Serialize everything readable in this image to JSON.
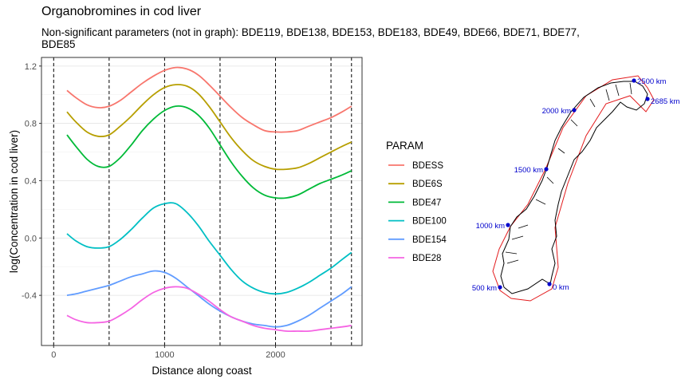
{
  "chart_data": {
    "type": "line",
    "title": "Organobromines in cod liver",
    "subtitle": "Non-significant parameters (not in graph): BDE119, BDE138, BDE153, BDE183, BDE49, BDE66, BDE71, BDE77, BDE85",
    "xlabel": "Distance along coast",
    "ylabel": "log(Concentration in cod liver)",
    "xlim": [
      -110,
      2780
    ],
    "ylim": [
      -0.75,
      1.26
    ],
    "x_ticks": [
      0,
      1000,
      2000
    ],
    "y_ticks": [
      -0.4,
      0.0,
      0.4,
      0.8,
      1.2
    ],
    "y_tick_labels": [
      "-0.4",
      "0.0",
      "0.4",
      "0.8",
      "1.2"
    ],
    "x_tick_labels": [
      "0",
      "1000",
      "2000"
    ],
    "vlines": [
      0,
      500,
      1000,
      1500,
      2000,
      2500,
      2685
    ],
    "legend_title": "PARAM",
    "legend_position": "right",
    "series": [
      {
        "name": "BDESS",
        "color": "#F8766D",
        "x": [
          120,
          200,
          300,
          400,
          500,
          600,
          700,
          800,
          900,
          1000,
          1100,
          1200,
          1300,
          1400,
          1500,
          1600,
          1700,
          1800,
          1900,
          2000,
          2100,
          2200,
          2300,
          2400,
          2500,
          2600,
          2685
        ],
        "y": [
          1.03,
          0.98,
          0.93,
          0.91,
          0.92,
          0.96,
          1.02,
          1.08,
          1.13,
          1.17,
          1.19,
          1.18,
          1.14,
          1.07,
          0.99,
          0.91,
          0.84,
          0.79,
          0.75,
          0.74,
          0.74,
          0.75,
          0.78,
          0.81,
          0.84,
          0.88,
          0.92
        ]
      },
      {
        "name": "BDE6S",
        "color": "#B79F00",
        "x": [
          120,
          200,
          300,
          400,
          500,
          600,
          700,
          800,
          900,
          1000,
          1100,
          1200,
          1300,
          1400,
          1500,
          1600,
          1700,
          1800,
          1900,
          2000,
          2100,
          2200,
          2300,
          2400,
          2500,
          2600,
          2685
        ],
        "y": [
          0.88,
          0.81,
          0.74,
          0.71,
          0.72,
          0.78,
          0.85,
          0.93,
          1.0,
          1.05,
          1.07,
          1.06,
          1.01,
          0.92,
          0.81,
          0.7,
          0.61,
          0.54,
          0.5,
          0.48,
          0.48,
          0.49,
          0.52,
          0.56,
          0.6,
          0.64,
          0.67
        ]
      },
      {
        "name": "BDE47",
        "color": "#00BA38",
        "x": [
          120,
          200,
          300,
          400,
          500,
          600,
          700,
          800,
          900,
          1000,
          1100,
          1200,
          1300,
          1400,
          1500,
          1600,
          1700,
          1800,
          1900,
          2000,
          2100,
          2200,
          2300,
          2400,
          2500,
          2600,
          2685
        ],
        "y": [
          0.72,
          0.64,
          0.55,
          0.5,
          0.5,
          0.56,
          0.65,
          0.75,
          0.83,
          0.89,
          0.92,
          0.91,
          0.86,
          0.77,
          0.65,
          0.53,
          0.43,
          0.35,
          0.3,
          0.28,
          0.28,
          0.3,
          0.34,
          0.38,
          0.41,
          0.44,
          0.47
        ]
      },
      {
        "name": "BDE100",
        "color": "#00BFC4",
        "x": [
          120,
          200,
          300,
          400,
          500,
          600,
          700,
          800,
          900,
          1000,
          1100,
          1200,
          1300,
          1400,
          1500,
          1600,
          1700,
          1800,
          1900,
          2000,
          2100,
          2200,
          2300,
          2400,
          2500,
          2600,
          2685
        ],
        "y": [
          0.03,
          -0.02,
          -0.06,
          -0.07,
          -0.06,
          -0.01,
          0.06,
          0.14,
          0.21,
          0.24,
          0.24,
          0.18,
          0.09,
          -0.02,
          -0.12,
          -0.22,
          -0.3,
          -0.35,
          -0.38,
          -0.39,
          -0.38,
          -0.35,
          -0.31,
          -0.26,
          -0.21,
          -0.15,
          -0.1
        ]
      },
      {
        "name": "BDE154",
        "color": "#619CFF",
        "x": [
          120,
          200,
          300,
          400,
          500,
          600,
          700,
          800,
          900,
          1000,
          1100,
          1200,
          1300,
          1400,
          1500,
          1600,
          1700,
          1800,
          1900,
          2000,
          2100,
          2200,
          2300,
          2400,
          2500,
          2600,
          2685
        ],
        "y": [
          -0.4,
          -0.39,
          -0.37,
          -0.35,
          -0.33,
          -0.3,
          -0.27,
          -0.25,
          -0.23,
          -0.24,
          -0.28,
          -0.34,
          -0.4,
          -0.46,
          -0.51,
          -0.55,
          -0.58,
          -0.6,
          -0.61,
          -0.62,
          -0.61,
          -0.58,
          -0.54,
          -0.49,
          -0.44,
          -0.39,
          -0.34
        ]
      },
      {
        "name": "BDE28",
        "color": "#F564E3",
        "x": [
          120,
          200,
          300,
          400,
          500,
          600,
          700,
          800,
          900,
          1000,
          1100,
          1200,
          1300,
          1400,
          1500,
          1600,
          1700,
          1800,
          1900,
          2000,
          2100,
          2200,
          2300,
          2400,
          2500,
          2600,
          2685
        ],
        "y": [
          -0.54,
          -0.57,
          -0.59,
          -0.59,
          -0.58,
          -0.54,
          -0.49,
          -0.43,
          -0.38,
          -0.35,
          -0.34,
          -0.35,
          -0.39,
          -0.44,
          -0.5,
          -0.55,
          -0.58,
          -0.61,
          -0.63,
          -0.64,
          -0.65,
          -0.65,
          -0.65,
          -0.64,
          -0.63,
          -0.62,
          -0.61
        ]
      }
    ]
  },
  "map": {
    "labels": [
      {
        "text": "0 km",
        "color": "#0000CC"
      },
      {
        "text": "500 km",
        "color": "#0000CC"
      },
      {
        "text": "1000 km",
        "color": "#0000CC"
      },
      {
        "text": "1500 km",
        "color": "#0000CC"
      },
      {
        "text": "2000 km",
        "color": "#0000CC"
      },
      {
        "text": "2500 km",
        "color": "#0000CC"
      },
      {
        "text": "2685 km",
        "color": "#0000CC"
      }
    ]
  }
}
